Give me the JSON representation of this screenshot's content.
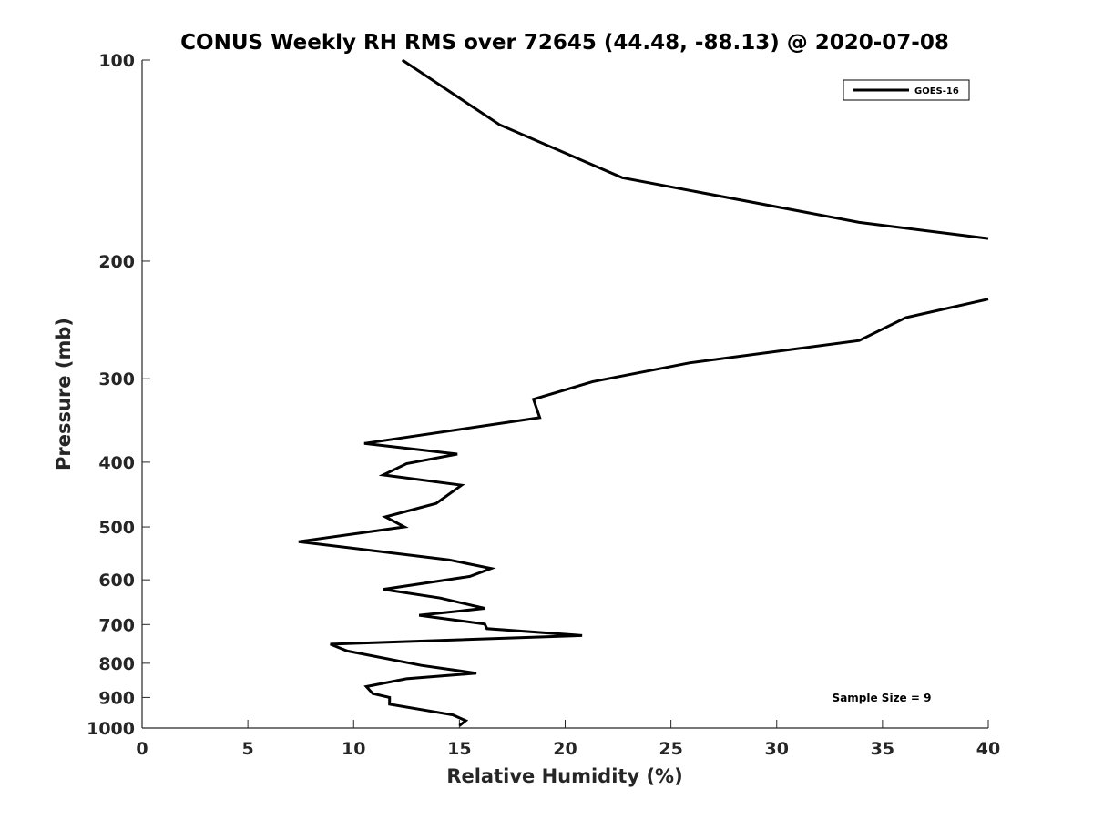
{
  "chart_data": {
    "type": "line",
    "title": "CONUS Weekly RH RMS over 72645 (44.48, -88.13) @ 2020-07-08",
    "xlabel": "Relative Humidity (%)",
    "ylabel": "Pressure (mb)",
    "xlim": [
      0,
      40
    ],
    "ylim": [
      100,
      1000
    ],
    "yscale": "log",
    "y_reversed": true,
    "grid": false,
    "xticks": [
      0,
      5,
      10,
      15,
      20,
      25,
      30,
      35,
      40
    ],
    "yticks": [
      100,
      200,
      300,
      400,
      500,
      600,
      700,
      800,
      900,
      1000
    ],
    "legend_position": "top-right",
    "annotation": "Sample Size = 9",
    "series": [
      {
        "name": "GOES-16",
        "color": "#000000",
        "segments": [
          [
            [
              12.3,
              100
            ],
            [
              16.9,
              125
            ],
            [
              22.7,
              150
            ],
            [
              33.9,
              175
            ],
            [
              40.0,
              185
            ]
          ],
          [
            [
              40.0,
              228
            ],
            [
              36.1,
              243
            ],
            [
              33.9,
              263
            ],
            [
              25.9,
              284
            ],
            [
              21.3,
              303
            ],
            [
              18.5,
              322
            ],
            [
              18.8,
              343
            ],
            [
              10.5,
              375
            ],
            [
              14.9,
              389
            ],
            [
              12.5,
              402
            ],
            [
              11.4,
              418
            ],
            [
              15.1,
              433
            ],
            [
              13.9,
              461
            ],
            [
              11.5,
              483
            ],
            [
              12.4,
              500
            ],
            [
              7.4,
              526
            ],
            [
              14.5,
              560
            ],
            [
              16.5,
              577
            ],
            [
              15.5,
              593
            ],
            [
              11.4,
              620
            ],
            [
              14.1,
              639
            ],
            [
              16.2,
              662
            ],
            [
              13.1,
              678
            ],
            [
              16.2,
              699
            ],
            [
              16.3,
              710
            ],
            [
              20.8,
              727
            ],
            [
              8.9,
              749
            ],
            [
              9.7,
              767
            ],
            [
              13.2,
              806
            ],
            [
              15.8,
              828
            ],
            [
              12.5,
              844
            ],
            [
              10.6,
              867
            ],
            [
              10.9,
              888
            ],
            [
              11.7,
              900
            ],
            [
              11.7,
              921
            ],
            [
              14.7,
              956
            ],
            [
              15.3,
              975
            ],
            [
              15.0,
              992
            ]
          ]
        ]
      }
    ]
  }
}
